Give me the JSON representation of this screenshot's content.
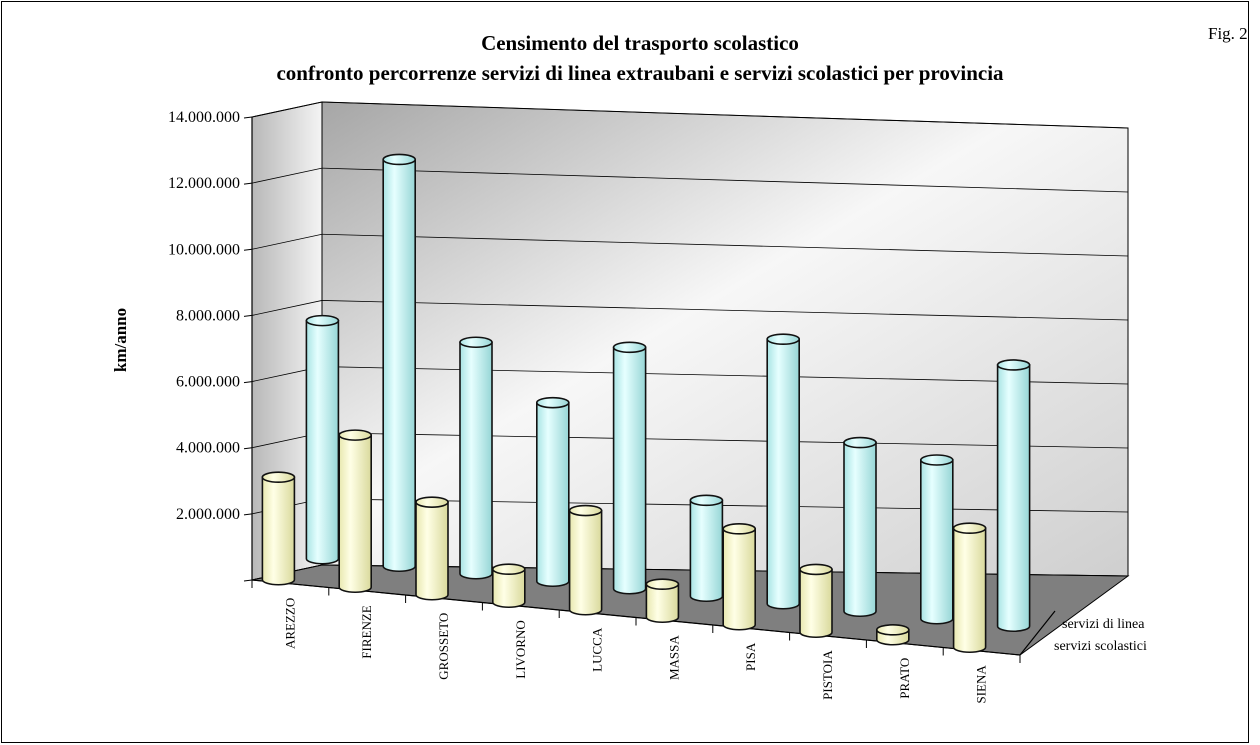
{
  "fig_label": "Fig. 2",
  "chart_data": {
    "type": "bar",
    "style": "3d-cylinder",
    "title": "Censimento del trasporto scolastico",
    "subtitle": "confronto percorrenze servizi di linea extraubani e servizi scolastici per provincia",
    "xlabel": "",
    "ylabel": "km/anno",
    "ylim": [
      0,
      14000000
    ],
    "y_ticks": [
      "14.000.000",
      "12.000.000",
      "10.000.000",
      "8.000.000",
      "6.000.000",
      "4.000.000",
      "2.000.000",
      ""
    ],
    "grid": true,
    "categories": [
      "AREZZO",
      "FIRENZE",
      "GROSSETO",
      "LIVORNO",
      "LUCCA",
      "MASSA",
      "PISA",
      "PISTOIA",
      "PRATO",
      "SIENA"
    ],
    "series": [
      {
        "name": "servizi scolastici",
        "color": "#FFFFCC",
        "values": [
          3100000,
          4600000,
          2800000,
          1000000,
          3000000,
          1000000,
          2900000,
          1900000,
          300000,
          3600000
        ]
      },
      {
        "name": "servizi di linea",
        "color": "#CCFFFF",
        "values": [
          7200000,
          12300000,
          7000000,
          5400000,
          7300000,
          2900000,
          8000000,
          5100000,
          4800000,
          7900000
        ]
      }
    ]
  }
}
